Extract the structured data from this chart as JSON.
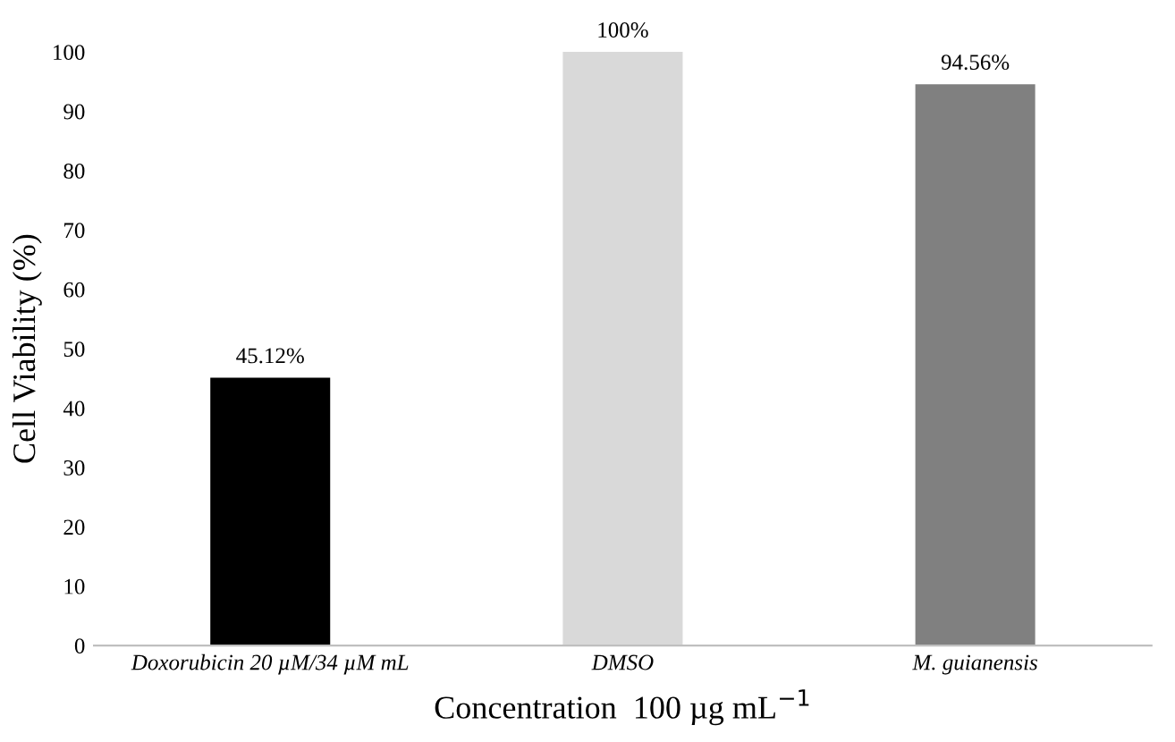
{
  "chart_data": {
    "type": "bar",
    "categories": [
      "Doxorubicin 20 µM/34 µM mL",
      "DMSO",
      "M. guianensis"
    ],
    "values": [
      45.12,
      100,
      94.56
    ],
    "colors": [
      "#000000",
      "#d9d9d9",
      "#808080"
    ],
    "value_labels": [
      "45.12%",
      "100%",
      "94.56%"
    ],
    "ylabel": "Cell Viability (%)",
    "xlabel": "Concentration  100 µg mL$^{−1}$",
    "ylim": [
      0,
      100
    ],
    "yticks": [
      0,
      10,
      20,
      30,
      40,
      50,
      60,
      70,
      80,
      90,
      100
    ],
    "grid": false
  }
}
